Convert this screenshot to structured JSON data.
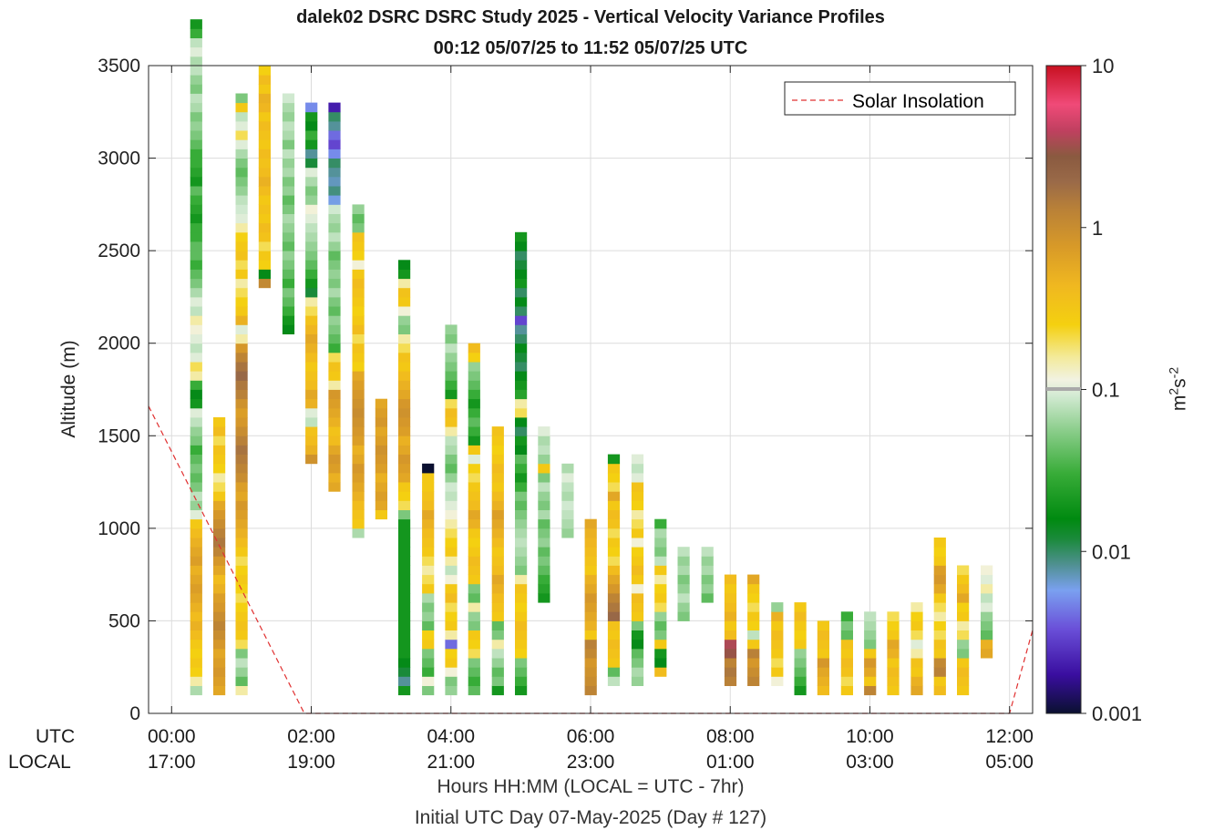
{
  "chart_data": {
    "type": "heatmap",
    "title": "dalek02 DSRC DSRC Study 2025 - Vertical Velocity Variance Profiles",
    "subtitle": "00:12 05/07/25 to 11:52 05/07/25  UTC",
    "ylabel": "Altitude (m)",
    "xlabel": "Hours HH:MM  (LOCAL = UTC - 7hr)",
    "xlabel2": "Initial UTC Day 07-May-2025 (Day # 127)",
    "xlim": [
      -0.33,
      12.33
    ],
    "ylim": [
      0,
      3500
    ],
    "xticks": [
      0,
      2,
      4,
      6,
      8,
      10,
      12
    ],
    "xtick_utc": [
      "00:00",
      "02:00",
      "04:00",
      "06:00",
      "08:00",
      "10:00",
      "12:00"
    ],
    "xtick_local": [
      "17:00",
      "19:00",
      "21:00",
      "23:00",
      "01:00",
      "03:00",
      "05:00"
    ],
    "xrow_labels": [
      "UTC",
      "LOCAL"
    ],
    "yticks": [
      0,
      500,
      1000,
      1500,
      2000,
      2500,
      3000,
      3500
    ],
    "ytick_labels": [
      "0",
      "500",
      "1000",
      "1500",
      "2000",
      "2500",
      "3000",
      "3500"
    ],
    "grid": true,
    "legend": {
      "label": "Solar Insolation",
      "placement": "top-right",
      "color": "#e03030"
    },
    "colorbar": {
      "label_base": "m",
      "label_sup1": "2",
      "label_mid": "s",
      "label_sup2": "-2",
      "scale": "log",
      "range": [
        0.001,
        10
      ],
      "ticks": [
        0.001,
        0.01,
        0.1,
        1,
        10
      ],
      "tick_labels": [
        "0.001",
        "0.01",
        "0.1",
        "1",
        "10"
      ]
    },
    "solar_insolation": {
      "x": [
        -0.33,
        1.9,
        12.0,
        12.33
      ],
      "y": [
        1660,
        0,
        0,
        450
      ]
    },
    "time_step_hours": 0.1667,
    "altitude_step_m": 50,
    "columns": [
      {
        "t": 0.35,
        "bottom": 100,
        "values": [
          0.07,
          0.15,
          0.25,
          0.3,
          0.25,
          0.3,
          0.4,
          0.5,
          0.4,
          0.5,
          0.6,
          0.7,
          0.6,
          0.5,
          0.7,
          0.6,
          0.5,
          0.4,
          0.3,
          0.1,
          0.06,
          0.08,
          0.05,
          0.04,
          0.05,
          0.04,
          0.03,
          0.05,
          0.06,
          0.08,
          0.1,
          0.02,
          0.015,
          0.03,
          0.15,
          0.2,
          0.1,
          0.08,
          0.1,
          0.12,
          0.15,
          0.08,
          0.1,
          0.07,
          0.05,
          0.04,
          0.03,
          0.04,
          0.04,
          0.03,
          0.03,
          0.02,
          0.025,
          0.03,
          0.04,
          0.02,
          0.025,
          0.03,
          0.03,
          0.04,
          0.05,
          0.06,
          0.05,
          0.07,
          0.08,
          0.05,
          0.06,
          0.08,
          0.07,
          0.1,
          0.08,
          0.03,
          0.02
        ]
      },
      {
        "t": 0.68,
        "bottom": 100,
        "values": [
          0.6,
          0.7,
          0.8,
          0.7,
          0.6,
          0.8,
          1.0,
          1.2,
          1.0,
          0.8,
          0.7,
          0.5,
          0.4,
          0.6,
          0.8,
          1.2,
          1.5,
          1.3,
          1.0,
          0.8,
          0.6,
          0.3,
          0.2,
          0.15,
          0.25,
          0.3,
          0.35,
          0.2,
          0.4,
          0.3
        ]
      },
      {
        "t": 1.0,
        "bottom": 100,
        "values": [
          0.15,
          0.04,
          0.06,
          0.08,
          0.05,
          0.2,
          0.3,
          0.35,
          0.3,
          0.25,
          0.2,
          0.25,
          0.3,
          0.25,
          0.2,
          0.3,
          0.4,
          0.5,
          0.6,
          0.7,
          0.8,
          0.6,
          0.7,
          1.0,
          1.2,
          1.4,
          1.6,
          1.3,
          1.0,
          0.8,
          0.7,
          0.9,
          1.3,
          1.5,
          2.0,
          1.6,
          1.2,
          0.8,
          0.15,
          0.1,
          0.5,
          0.3,
          0.25,
          0.2,
          0.15,
          0.3,
          0.2,
          0.35,
          0.3,
          0.25,
          0.15,
          0.1,
          0.09,
          0.08,
          0.06,
          0.05,
          0.04,
          0.05,
          0.07,
          0.1,
          0.2,
          0.1,
          0.08,
          0.3,
          0.05
        ]
      },
      {
        "t": 1.33,
        "bottom": 2300,
        "values": [
          1.1,
          0.015,
          0.25,
          0.3,
          0.2,
          0.35,
          0.4,
          0.3,
          0.35,
          0.3,
          0.4,
          0.5,
          0.4,
          0.35,
          0.4,
          0.3,
          0.35,
          0.4,
          0.3,
          0.45,
          0.5,
          0.3,
          0.4,
          0.25
        ]
      },
      {
        "t": 1.67,
        "bottom": 2050,
        "values": [
          0.015,
          0.02,
          0.03,
          0.04,
          0.05,
          0.03,
          0.04,
          0.05,
          0.06,
          0.04,
          0.05,
          0.06,
          0.07,
          0.05,
          0.04,
          0.06,
          0.05,
          0.07,
          0.06,
          0.08,
          0.05,
          0.07,
          0.08,
          0.06,
          0.07,
          0.09
        ]
      },
      {
        "t": 2.0,
        "bottom": 1350,
        "values": [
          0.9,
          0.5,
          0.4,
          0.35,
          0.08,
          0.1,
          0.5,
          0.6,
          0.4,
          0.35,
          0.3,
          0.4,
          0.5,
          0.6,
          0.45,
          0.35,
          0.2,
          0.15,
          0.012,
          0.02,
          0.03,
          0.04,
          0.05,
          0.06,
          0.07,
          0.08,
          0.1,
          0.12,
          0.06,
          0.05,
          0.07,
          0.1,
          0.012,
          0.008,
          0.02,
          0.03,
          0.015,
          0.02,
          0.005
        ]
      },
      {
        "t": 2.33,
        "bottom": 1200,
        "values": [
          0.6,
          0.5,
          0.7,
          0.8,
          0.6,
          0.4,
          0.35,
          0.5,
          0.6,
          0.7,
          0.8,
          0.15,
          0.3,
          0.35,
          0.2,
          0.03,
          0.04,
          0.05,
          0.06,
          0.04,
          0.05,
          0.07,
          0.05,
          0.06,
          0.05,
          0.04,
          0.06,
          0.08,
          0.06,
          0.07,
          0.09,
          0.006,
          0.009,
          0.007,
          0.008,
          0.01,
          0.005,
          0.003,
          0.004,
          0.008,
          0.01,
          0.002
        ]
      },
      {
        "t": 2.67,
        "bottom": 950,
        "values": [
          0.07,
          0.3,
          0.35,
          0.4,
          0.5,
          0.6,
          0.7,
          0.8,
          0.6,
          0.5,
          0.7,
          0.8,
          0.9,
          1.0,
          0.9,
          0.8,
          0.7,
          0.6,
          0.25,
          0.3,
          0.35,
          0.2,
          0.4,
          0.3,
          0.25,
          0.3,
          0.35,
          0.4,
          0.3,
          0.12,
          0.25,
          0.3,
          0.35,
          0.05,
          0.04,
          0.06
        ]
      },
      {
        "t": 3.0,
        "bottom": 1050,
        "values": [
          0.3,
          0.6,
          0.7,
          0.6,
          0.5,
          0.7,
          0.8,
          0.9,
          0.7,
          0.6,
          0.8,
          0.7,
          0.6
        ]
      },
      {
        "t": 3.33,
        "bottom": 100,
        "values": [
          0.02,
          0.008,
          0.012,
          0.015,
          0.02,
          0.02,
          0.02,
          0.02,
          0.02,
          0.02,
          0.02,
          0.02,
          0.02,
          0.02,
          0.02,
          0.02,
          0.02,
          0.02,
          0.02,
          0.05,
          0.2,
          0.25,
          0.3,
          0.6,
          0.7,
          0.8,
          0.6,
          0.5,
          0.7,
          0.8,
          0.9,
          0.8,
          0.6,
          0.5,
          0.4,
          0.3,
          0.35,
          0.2,
          0.15,
          0.05,
          0.06,
          0.12,
          0.3,
          0.35,
          0.15,
          0.02,
          0.015
        ]
      },
      {
        "t": 3.67,
        "bottom": 100,
        "values": [
          0.05,
          0.12,
          0.03,
          0.04,
          0.05,
          0.3,
          0.25,
          0.04,
          0.06,
          0.05,
          0.07,
          0.3,
          0.2,
          0.15,
          0.2,
          0.3,
          0.35,
          0.4,
          0.5,
          0.6,
          0.4,
          0.35,
          0.3,
          0.3,
          0.001
        ]
      },
      {
        "t": 4.0,
        "bottom": 100,
        "values": [
          0.06,
          0.05,
          0.12,
          0.3,
          0.25,
          0.004,
          0.15,
          0.3,
          0.25,
          0.2,
          0.4,
          0.3,
          0.12,
          0.08,
          0.15,
          0.3,
          0.25,
          0.2,
          0.15,
          0.12,
          0.1,
          0.08,
          0.09,
          0.06,
          0.04,
          0.05,
          0.07,
          0.08,
          0.15,
          0.35,
          0.4,
          0.2,
          0.02,
          0.03,
          0.04,
          0.05,
          0.06,
          0.08,
          0.05,
          0.06
        ]
      },
      {
        "t": 4.33,
        "bottom": 100,
        "values": [
          0.04,
          0.03,
          0.04,
          0.05,
          0.2,
          0.25,
          0.3,
          0.05,
          0.06,
          0.15,
          0.04,
          0.05,
          0.3,
          0.35,
          0.4,
          0.3,
          0.25,
          0.3,
          0.5,
          0.6,
          0.4,
          0.35,
          0.3,
          0.2,
          0.25,
          0.1,
          0.3,
          0.02,
          0.03,
          0.04,
          0.03,
          0.02,
          0.03,
          0.04,
          0.05,
          0.06,
          0.25,
          0.4
        ]
      },
      {
        "t": 4.67,
        "bottom": 100,
        "values": [
          0.02,
          0.05,
          0.04,
          0.06,
          0.08,
          0.15,
          0.05,
          0.04,
          0.3,
          0.35,
          0.4,
          0.5,
          0.6,
          0.4,
          0.35,
          0.3,
          0.4,
          0.5,
          0.6,
          0.7,
          0.5,
          0.4,
          0.3,
          0.35,
          0.4,
          0.3,
          0.25,
          0.3,
          0.35
        ]
      },
      {
        "t": 5.0,
        "bottom": 100,
        "values": [
          0.02,
          0.03,
          0.04,
          0.05,
          0.25,
          0.3,
          0.35,
          0.4,
          0.3,
          0.25,
          0.3,
          0.35,
          0.15,
          0.05,
          0.06,
          0.07,
          0.08,
          0.07,
          0.06,
          0.05,
          0.04,
          0.05,
          0.03,
          0.02,
          0.03,
          0.04,
          0.015,
          0.02,
          0.01,
          0.015,
          0.2,
          0.15,
          0.025,
          0.02,
          0.015,
          0.01,
          0.012,
          0.015,
          0.01,
          0.008,
          0.003,
          0.01,
          0.015,
          0.01,
          0.02,
          0.015,
          0.012,
          0.01,
          0.015,
          0.02
        ]
      },
      {
        "t": 5.33,
        "bottom": 600,
        "values": [
          0.02,
          0.025,
          0.03,
          0.04,
          0.05,
          0.04,
          0.06,
          0.05,
          0.04,
          0.07,
          0.05,
          0.06,
          0.08,
          0.05,
          0.3,
          0.06,
          0.08,
          0.07,
          0.1
        ]
      },
      {
        "t": 5.67,
        "bottom": 950,
        "values": [
          0.06,
          0.07,
          0.08,
          0.09,
          0.07,
          0.08,
          0.1,
          0.07
        ]
      },
      {
        "t": 6.0,
        "bottom": 100,
        "values": [
          1.2,
          1.0,
          0.9,
          0.8,
          1.1,
          1.3,
          0.3,
          0.5,
          0.6,
          0.7,
          0.8,
          0.6,
          0.5,
          0.3,
          0.35,
          0.4,
          0.45,
          0.5,
          0.6
        ]
      },
      {
        "t": 6.33,
        "bottom": 150,
        "values": [
          0.08,
          0.04,
          0.3,
          0.35,
          0.4,
          0.3,
          0.35,
          2.0,
          1.5,
          1.2,
          0.8,
          0.6,
          0.4,
          0.2,
          0.25,
          0.3,
          0.2,
          0.35,
          0.4,
          0.3,
          0.6,
          0.2,
          0.25,
          0.3,
          0.02
        ]
      },
      {
        "t": 6.67,
        "bottom": 150,
        "values": [
          0.06,
          0.07,
          0.05,
          0.04,
          0.015,
          0.02,
          0.05,
          0.3,
          0.35,
          0.4,
          0.12,
          0.3,
          0.4,
          0.3,
          0.25,
          0.12,
          0.3,
          0.2,
          0.15,
          0.25,
          0.3,
          0.35,
          0.1,
          0.08,
          0.1
        ]
      },
      {
        "t": 7.0,
        "bottom": 200,
        "values": [
          0.4,
          0.015,
          0.02,
          0.3,
          0.05,
          0.04,
          0.06,
          0.2,
          0.3,
          0.25,
          0.15,
          0.3,
          0.08,
          0.05,
          0.06,
          0.07,
          0.03
        ]
      },
      {
        "t": 7.33,
        "bottom": 500,
        "values": [
          0.05,
          0.06,
          0.08,
          0.06,
          0.05,
          0.07,
          0.06,
          0.08
        ]
      },
      {
        "t": 7.67,
        "bottom": 600,
        "values": [
          0.04,
          0.06,
          0.05,
          0.07,
          0.06,
          0.08
        ]
      },
      {
        "t": 8.0,
        "bottom": 150,
        "values": [
          1.3,
          1.5,
          1.2,
          3.0,
          3.5,
          0.4,
          0.3,
          0.5,
          0.4,
          0.35,
          0.3,
          0.4
        ]
      },
      {
        "t": 8.33,
        "bottom": 150,
        "values": [
          1.2,
          1.0,
          0.8,
          1.3,
          0.3,
          0.08,
          0.25,
          0.3,
          0.2,
          0.25,
          0.3,
          0.6
        ]
      },
      {
        "t": 8.67,
        "bottom": 150,
        "values": [
          0.12,
          0.3,
          0.2,
          0.3,
          0.35,
          0.4,
          0.3,
          0.5,
          0.06
        ]
      },
      {
        "t": 9.0,
        "bottom": 100,
        "values": [
          0.02,
          0.03,
          0.04,
          0.05,
          0.06,
          0.3,
          0.25,
          0.3,
          0.4,
          0.3
        ]
      },
      {
        "t": 9.33,
        "bottom": 100,
        "values": [
          0.4,
          0.5,
          0.6,
          0.8,
          0.3,
          0.35,
          0.4,
          0.3
        ]
      },
      {
        "t": 9.67,
        "bottom": 100,
        "values": [
          0.3,
          0.2,
          0.35,
          0.4,
          0.3,
          0.35,
          0.04,
          0.05,
          0.03
        ]
      },
      {
        "t": 10.0,
        "bottom": 100,
        "values": [
          1.2,
          0.3,
          0.6,
          0.8,
          0.3,
          0.05,
          0.06,
          0.07,
          0.08
        ]
      },
      {
        "t": 10.33,
        "bottom": 100,
        "values": [
          0.3,
          0.35,
          0.4,
          0.3,
          0.5,
          0.6,
          0.3,
          0.25,
          0.2
        ]
      },
      {
        "t": 10.67,
        "bottom": 100,
        "values": [
          0.6,
          0.5,
          0.3,
          0.35,
          0.15,
          0.1,
          0.2,
          0.3,
          0.25,
          0.15
        ]
      },
      {
        "t": 11.0,
        "bottom": 100,
        "values": [
          0.4,
          0.3,
          1.3,
          1.1,
          0.3,
          0.35,
          0.2,
          0.25,
          0.15,
          0.2,
          0.3,
          0.6,
          0.8,
          0.7,
          0.3,
          0.25,
          0.3
        ]
      },
      {
        "t": 11.33,
        "bottom": 100,
        "values": [
          0.3,
          0.35,
          0.4,
          0.3,
          0.05,
          0.06,
          0.2,
          0.15,
          0.3,
          0.25,
          0.6,
          0.4,
          0.3,
          0.2
        ]
      },
      {
        "t": 11.67,
        "bottom": 300,
        "values": [
          0.6,
          0.5,
          0.04,
          0.05,
          0.06,
          0.1,
          0.08,
          0.15,
          0.1,
          0.12
        ]
      }
    ]
  }
}
